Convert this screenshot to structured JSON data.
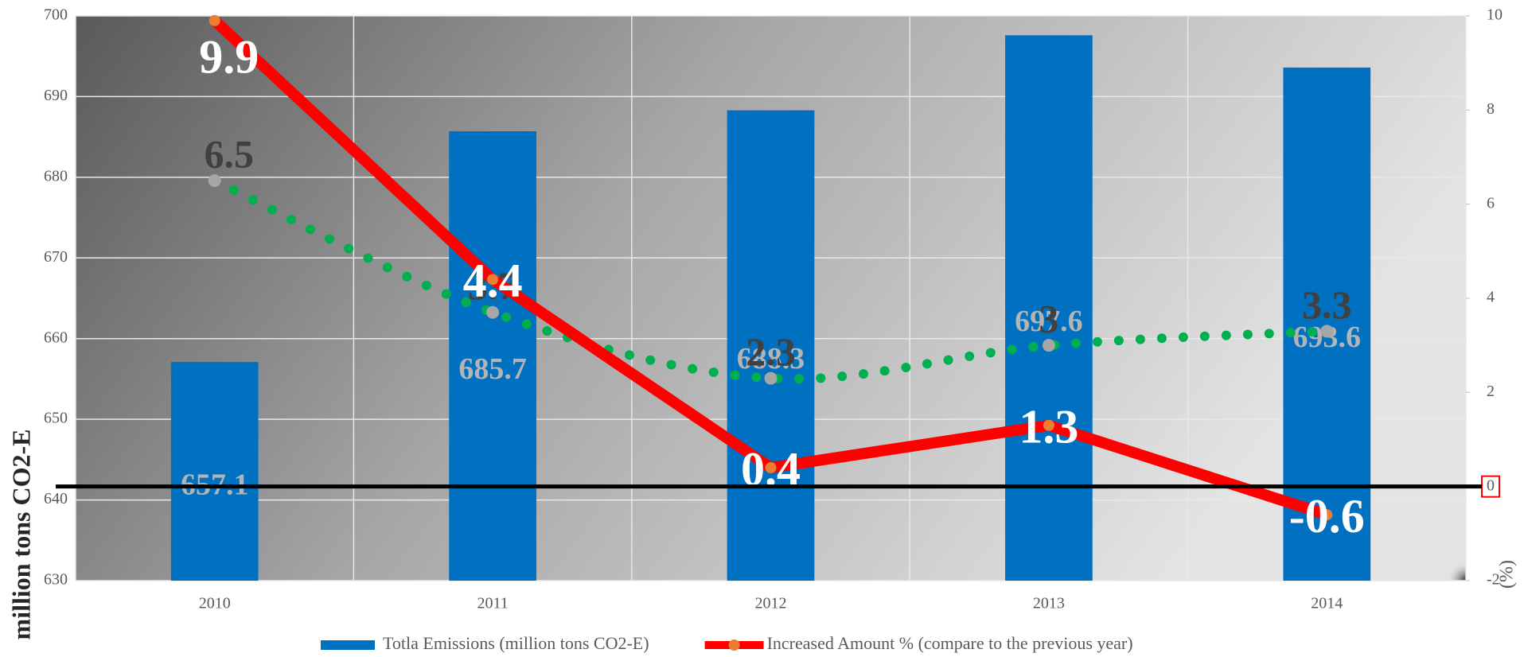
{
  "chart_data": {
    "type": "bar",
    "categories": [
      "2010",
      "2011",
      "2012",
      "2013",
      "2014"
    ],
    "series": [
      {
        "name": "Totla Emissions (million tons CO2-E)",
        "type": "bar",
        "color": "#0070c0",
        "values": [
          657.1,
          685.7,
          688.3,
          697.6,
          693.6
        ]
      },
      {
        "name": "Increased Amount % (compare to the previous year)",
        "type": "line",
        "axis": "y2",
        "color": "#ff0000",
        "values": [
          9.9,
          4.4,
          0.4,
          1.3,
          -0.6
        ]
      },
      {
        "type": "dotted-line",
        "axis": "y2",
        "color": "#00b050",
        "values": [
          6.5,
          3.7,
          2.3,
          3,
          3.3
        ]
      }
    ],
    "ylabel": "million tons CO2-E",
    "y2label": "(%)",
    "ylim": [
      630,
      700
    ],
    "yticks": [
      630,
      640,
      650,
      660,
      670,
      680,
      690,
      700
    ],
    "y2lim": [
      -2,
      10
    ],
    "y2ticks": [
      -2,
      0,
      2,
      4,
      6,
      8,
      10
    ],
    "grid": true,
    "legend": "bottom"
  }
}
